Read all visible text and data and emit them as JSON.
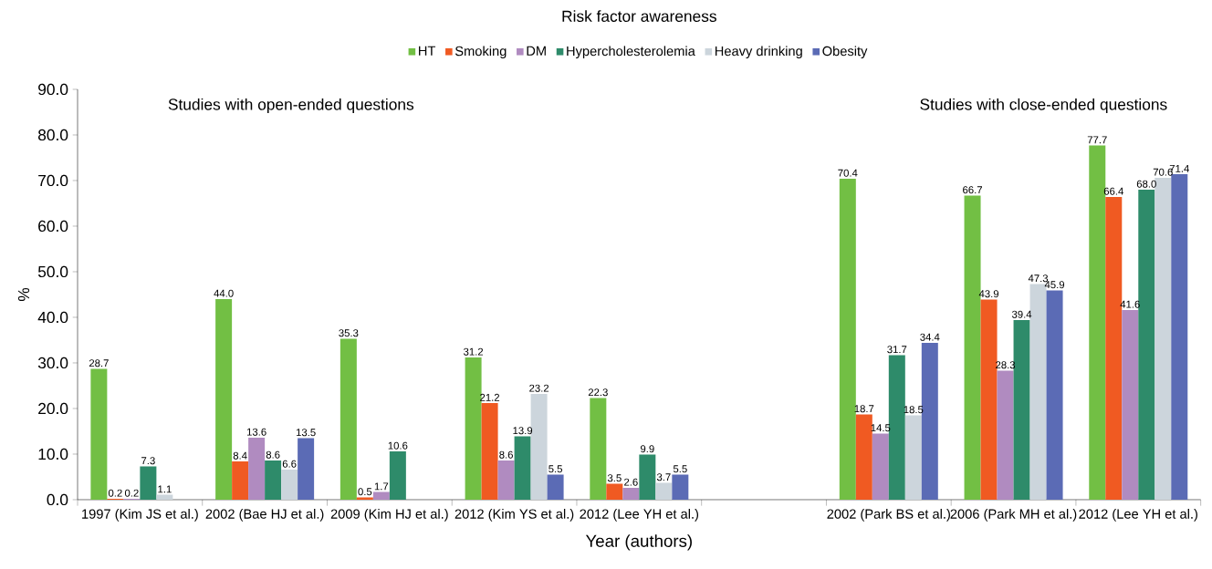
{
  "chart_data": {
    "type": "bar",
    "title": "Risk factor awareness",
    "xlabel": "Year (authors)",
    "ylabel": "%",
    "categories": [
      "1997 (Kim JS et al.)",
      "2002 (Bae HJ et al.)",
      "2009 (Kim HJ et al.)",
      "2012 (Kim YS et al.)",
      "2012 (Lee YH et al.)",
      null,
      "2002 (Park BS et al.)",
      "2006 (Park MH et al.)",
      "2012 (Lee YH et al.)"
    ],
    "series": [
      {
        "name": "HT",
        "color": "#72bf44",
        "values": [
          28.7,
          44.0,
          35.3,
          31.2,
          22.3,
          null,
          70.4,
          66.7,
          77.7
        ],
        "value_labels": [
          "28.7",
          "44.0",
          "35.3",
          "31.2",
          "22.3",
          null,
          "70.4",
          "66.7",
          "77.7"
        ]
      },
      {
        "name": "Smoking",
        "color": "#f05a22",
        "values": [
          0.2,
          8.4,
          0.5,
          21.2,
          3.5,
          null,
          18.7,
          43.9,
          66.4
        ],
        "value_labels": [
          "0.2",
          "8.4",
          "0.5",
          "21.2",
          "3.5",
          null,
          "18.7",
          "43.9",
          "66.4"
        ]
      },
      {
        "name": "DM",
        "color": "#b08bc0",
        "values": [
          0.2,
          13.6,
          1.7,
          8.6,
          2.6,
          null,
          14.5,
          28.3,
          41.6
        ],
        "value_labels": [
          "0.2",
          "13.6",
          "1.7",
          "8.6",
          "2.6",
          null,
          "14.5",
          "28.3",
          "41.6"
        ]
      },
      {
        "name": "Hypercholesterolemia",
        "color": "#2e8b6a",
        "values": [
          7.3,
          8.6,
          10.6,
          13.9,
          9.9,
          null,
          31.7,
          39.4,
          68.0
        ],
        "value_labels": [
          "7.3",
          "8.6",
          "10.6",
          "13.9",
          "9.9",
          null,
          "31.7",
          "39.4",
          "68.0"
        ]
      },
      {
        "name": "Heavy drinking",
        "color": "#ccd5dc",
        "values": [
          1.1,
          6.6,
          null,
          23.2,
          3.7,
          null,
          18.5,
          47.3,
          70.6
        ],
        "value_labels": [
          "1.1",
          "6.6",
          null,
          "23.2",
          "3.7",
          null,
          "18.5",
          "47.3",
          "70.6"
        ]
      },
      {
        "name": "Obesity",
        "color": "#5b6bb5",
        "values": [
          null,
          13.5,
          null,
          5.5,
          5.5,
          null,
          34.4,
          45.9,
          71.4
        ],
        "value_labels": [
          null,
          "13.5",
          null,
          "5.5",
          "5.5",
          null,
          "34.4",
          "45.9",
          "71.4"
        ]
      }
    ],
    "ylim": [
      0,
      90
    ],
    "yticks": [
      {
        "value": 0,
        "label": "0.0"
      },
      {
        "value": 10,
        "label": "10.0"
      },
      {
        "value": 20,
        "label": "20.0"
      },
      {
        "value": 30,
        "label": "30.0"
      },
      {
        "value": 40,
        "label": "40.0"
      },
      {
        "value": 50,
        "label": "50.0"
      },
      {
        "value": 60,
        "label": "60.0"
      },
      {
        "value": 70,
        "label": "70.0"
      },
      {
        "value": 80,
        "label": "80.0"
      },
      {
        "value": 90,
        "label": "90.0"
      }
    ],
    "annotations": [
      "Studies with open-ended questions",
      "Studies with close-ended questions"
    ],
    "legend": "top",
    "grid": false
  }
}
